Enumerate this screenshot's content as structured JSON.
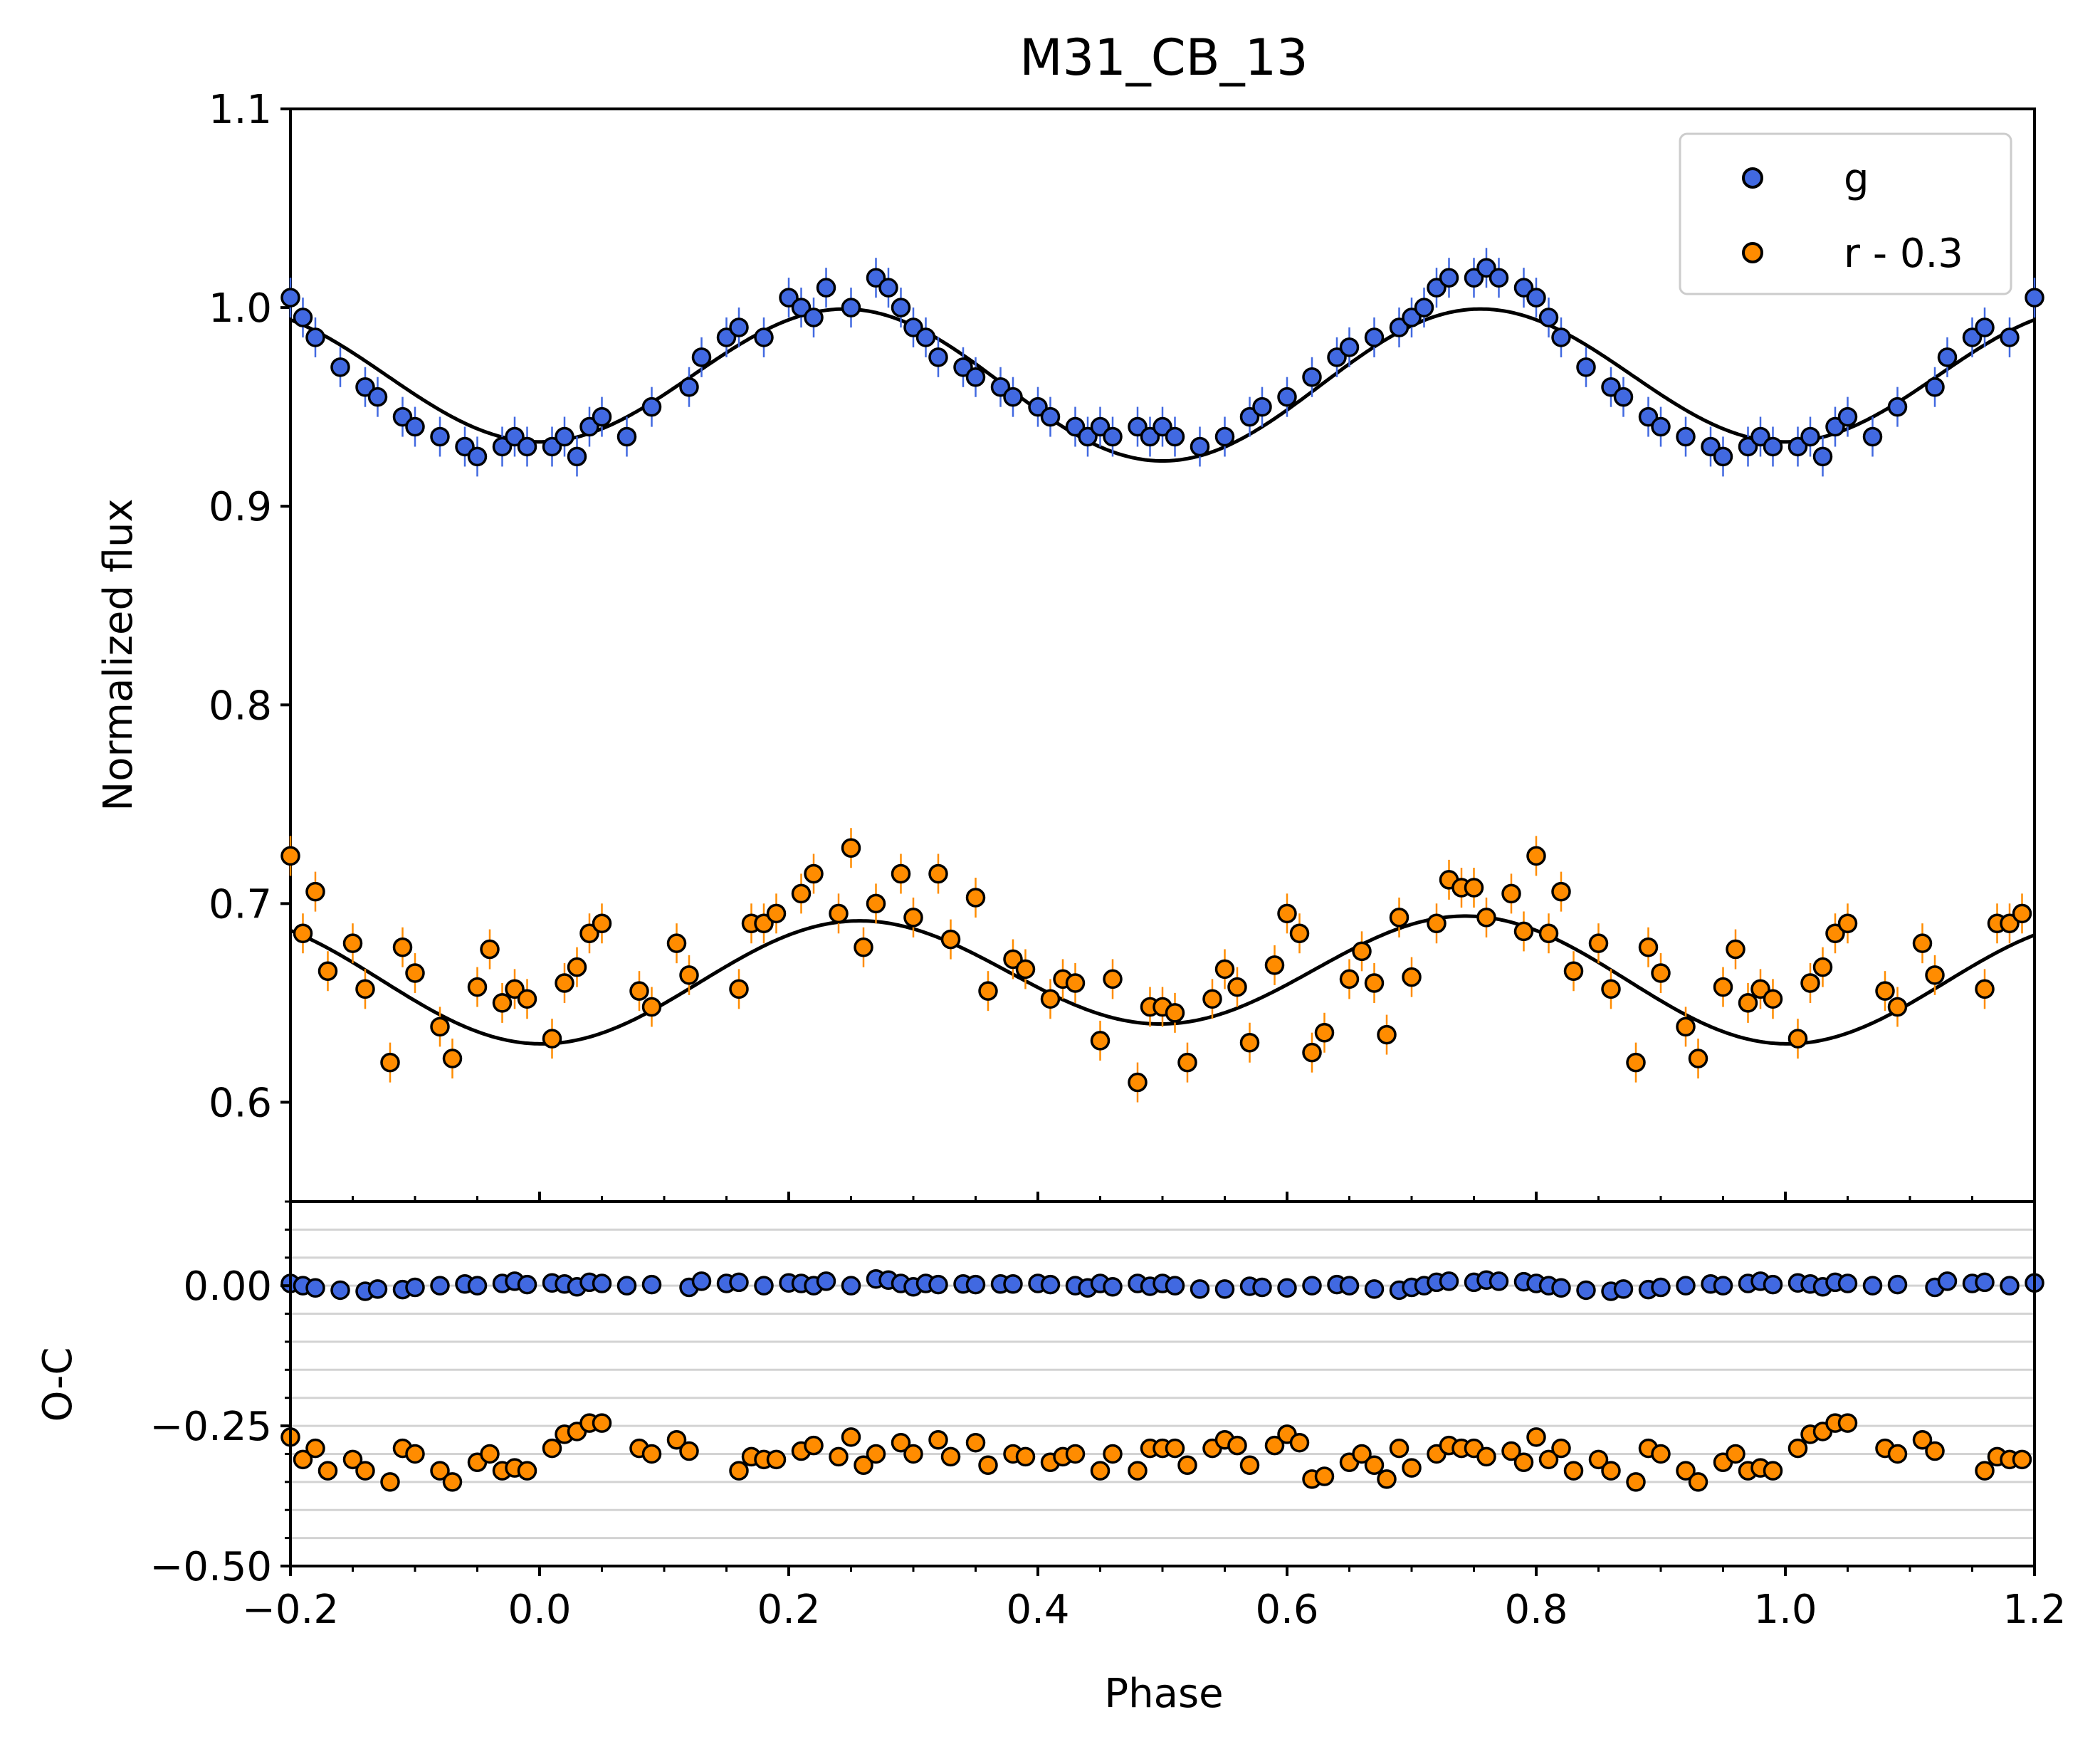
{
  "chart_data": {
    "type": "scatter",
    "title": "M31_CB_13",
    "xlabel": "Phase",
    "top_panel": {
      "ylabel": "Normalized flux",
      "ylim": [
        0.55,
        1.1
      ],
      "yticks": [
        "0.6",
        "0.7",
        "0.8",
        "0.9",
        "1.0",
        "1.1"
      ],
      "yticks_values": [
        0.6,
        0.7,
        0.8,
        0.9,
        1.0,
        1.1
      ],
      "legend": {
        "location": "upper right",
        "entries": [
          "g",
          "r - 0.3"
        ]
      },
      "fit_model": {
        "g": {
          "mean": 0.9634,
          "a_cos4pi": -0.0358,
          "a_cos2pi": 0.0048,
          "a_sin2pi": 0.0
        },
        "r": {
          "mean": 0.6634,
          "a_cos4pi": -0.029,
          "a_cos2pi": -0.005,
          "a_sin2pi": -0.0012
        }
      }
    },
    "bottom_panel": {
      "ylabel": "O-C",
      "ylim": [
        -0.5,
        0.15
      ],
      "yticks": [
        "0.00",
        "−0.25",
        "−0.50"
      ],
      "yticks_values": [
        0.0,
        -0.25,
        -0.5
      ],
      "grid": true
    },
    "xlim": [
      -0.2,
      1.2
    ],
    "xticks": [
      "−0.2",
      "0.0",
      "0.2",
      "0.4",
      "0.6",
      "0.8",
      "1.0",
      "1.2"
    ],
    "xticks_values": [
      -0.2,
      0.0,
      0.2,
      0.4,
      0.6,
      0.8,
      1.0,
      1.2
    ],
    "series": [
      {
        "name": "g",
        "color": "#4169e1",
        "phase": [
          0.01,
          0.02,
          0.03,
          0.04,
          0.05,
          0.07,
          0.09,
          0.12,
          0.13,
          0.15,
          0.16,
          0.18,
          0.2,
          0.21,
          0.22,
          0.23,
          0.25,
          0.27,
          0.28,
          0.29,
          0.3,
          0.31,
          0.32,
          0.34,
          0.35,
          0.37,
          0.38,
          0.4,
          0.41,
          0.43,
          0.44,
          0.45,
          0.46,
          0.48,
          0.49,
          0.5,
          0.51,
          0.53,
          0.55,
          0.57,
          0.58,
          0.6,
          0.62,
          0.64,
          0.65,
          0.67,
          0.69,
          0.7,
          0.71,
          0.72,
          0.73,
          0.75,
          0.76,
          0.77,
          0.79,
          0.8,
          0.81,
          0.82,
          0.84,
          0.86,
          0.87,
          0.89,
          0.9,
          0.92,
          0.94,
          0.95,
          0.97,
          0.98,
          0.99
        ],
        "flux": [
          0.93,
          0.935,
          0.925,
          0.94,
          0.945,
          0.935,
          0.95,
          0.96,
          0.975,
          0.985,
          0.99,
          0.985,
          1.005,
          1.0,
          0.995,
          1.01,
          1.0,
          1.015,
          1.01,
          1.0,
          0.99,
          0.985,
          0.975,
          0.97,
          0.965,
          0.96,
          0.955,
          0.95,
          0.945,
          0.94,
          0.935,
          0.94,
          0.935,
          0.94,
          0.935,
          0.94,
          0.935,
          0.93,
          0.935,
          0.945,
          0.95,
          0.955,
          0.965,
          0.975,
          0.98,
          0.985,
          0.99,
          0.995,
          1.0,
          1.01,
          1.015,
          1.015,
          1.02,
          1.015,
          1.01,
          1.005,
          0.995,
          0.985,
          0.97,
          0.96,
          0.955,
          0.945,
          0.94,
          0.935,
          0.93,
          0.925,
          0.93,
          0.935,
          0.93
        ],
        "oc": [
          0.005,
          0.003,
          -0.002,
          0.006,
          0.004,
          0.0,
          0.002,
          -0.003,
          0.008,
          0.004,
          0.006,
          0.0,
          0.005,
          0.004,
          0.0,
          0.008,
          0.0,
          0.012,
          0.01,
          0.004,
          -0.002,
          0.004,
          0.002,
          0.003,
          0.002,
          0.003,
          0.003,
          0.004,
          0.002,
          0.0,
          -0.004,
          0.004,
          -0.002,
          0.004,
          -0.001,
          0.004,
          0.0,
          -0.006,
          -0.006,
          -0.001,
          -0.003,
          -0.004,
          0.0,
          0.002,
          0.0,
          -0.006,
          -0.008,
          -0.003,
          0.0,
          0.006,
          0.008,
          0.006,
          0.01,
          0.008,
          0.007,
          0.004,
          0.0,
          -0.004,
          -0.008,
          -0.01,
          -0.006,
          -0.007,
          -0.003,
          0.0,
          0.003,
          0.0,
          0.004,
          0.008,
          0.002
        ]
      },
      {
        "name": "r - 0.3",
        "color": "#ff8c00",
        "phase": [
          0.01,
          0.02,
          0.03,
          0.04,
          0.05,
          0.08,
          0.09,
          0.11,
          0.12,
          0.16,
          0.17,
          0.18,
          0.19,
          0.21,
          0.22,
          0.24,
          0.25,
          0.26,
          0.27,
          0.29,
          0.3,
          0.32,
          0.33,
          0.35,
          0.36,
          0.38,
          0.39,
          0.41,
          0.42,
          0.43,
          0.45,
          0.46,
          0.48,
          0.49,
          0.5,
          0.51,
          0.52,
          0.54,
          0.55,
          0.56,
          0.57,
          0.59,
          0.6,
          0.61,
          0.62,
          0.63,
          0.65,
          0.66,
          0.67,
          0.68,
          0.69,
          0.7,
          0.72,
          0.73,
          0.74,
          0.75,
          0.76,
          0.78,
          0.79,
          0.8,
          0.81,
          0.82,
          0.83,
          0.85,
          0.86,
          0.88,
          0.89,
          0.9,
          0.92,
          0.93,
          0.95,
          0.96,
          0.97,
          0.98,
          0.99
        ],
        "flux": [
          0.632,
          0.66,
          0.668,
          0.685,
          0.69,
          0.656,
          0.648,
          0.68,
          0.664,
          0.657,
          0.69,
          0.69,
          0.695,
          0.705,
          0.715,
          0.695,
          0.728,
          0.678,
          0.7,
          0.715,
          0.693,
          0.715,
          0.682,
          0.703,
          0.656,
          0.672,
          0.667,
          0.652,
          0.662,
          0.66,
          0.631,
          0.662,
          0.61,
          0.648,
          0.648,
          0.645,
          0.62,
          0.652,
          0.667,
          0.658,
          0.63,
          0.669,
          0.695,
          0.685,
          0.625,
          0.635,
          0.662,
          0.676,
          0.66,
          0.634,
          0.693,
          0.663,
          0.69,
          0.712,
          0.708,
          0.708,
          0.693,
          0.705,
          0.686,
          0.724,
          0.685,
          0.706,
          0.666,
          0.68,
          0.657,
          0.62,
          0.678,
          0.665,
          0.638,
          0.622,
          0.658,
          0.677,
          0.65,
          0.657,
          0.652
        ],
        "oc": [
          -0.29,
          -0.265,
          -0.26,
          -0.245,
          -0.245,
          -0.29,
          -0.3,
          -0.275,
          -0.295,
          -0.33,
          -0.305,
          -0.31,
          -0.31,
          -0.295,
          -0.285,
          -0.305,
          -0.27,
          -0.32,
          -0.3,
          -0.28,
          -0.3,
          -0.275,
          -0.305,
          -0.28,
          -0.32,
          -0.3,
          -0.305,
          -0.315,
          -0.305,
          -0.3,
          -0.33,
          -0.3,
          -0.33,
          -0.29,
          -0.29,
          -0.29,
          -0.32,
          -0.29,
          -0.275,
          -0.285,
          -0.32,
          -0.285,
          -0.265,
          -0.28,
          -0.345,
          -0.34,
          -0.315,
          -0.3,
          -0.32,
          -0.345,
          -0.29,
          -0.325,
          -0.3,
          -0.285,
          -0.29,
          -0.29,
          -0.305,
          -0.295,
          -0.315,
          -0.27,
          -0.31,
          -0.29,
          -0.33,
          -0.31,
          -0.33,
          -0.35,
          -0.29,
          -0.3,
          -0.33,
          -0.35,
          -0.315,
          -0.3,
          -0.33,
          -0.325,
          -0.33
        ]
      }
    ]
  }
}
